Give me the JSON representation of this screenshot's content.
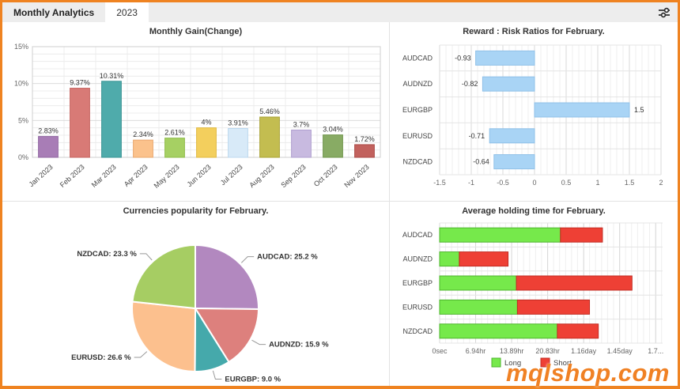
{
  "header": {
    "tabs": [
      {
        "label": "Monthly Analytics",
        "active": false
      },
      {
        "label": "2023",
        "active": true
      }
    ],
    "settings_icon": "sliders-icon"
  },
  "watermark": "mqlshop.com",
  "colors": {
    "accent_orange": "#ef8321",
    "risk_bar_fill": "#a9d4f5",
    "risk_bar_border": "#8fc0e8",
    "long_green": "#76e94b",
    "short_red": "#ee4035"
  },
  "chart_data": [
    {
      "type": "bar",
      "title": "Monthly Gain(Change)",
      "categories": [
        "Jan 2023",
        "Feb 2023",
        "Mar 2023",
        "Apr 2023",
        "May 2023",
        "Jun 2023",
        "Jul 2023",
        "Aug 2023",
        "Sep 2023",
        "Oct 2023",
        "Nov 2023"
      ],
      "values": [
        2.83,
        9.37,
        10.31,
        2.34,
        2.61,
        4,
        3.91,
        5.46,
        3.7,
        3.04,
        1.72
      ],
      "value_labels": [
        "2.83%",
        "9.37%",
        "10.31%",
        "2.34%",
        "2.61%",
        "4%",
        "3.91%",
        "5.46%",
        "3.7%",
        "3.04%",
        "1.72%"
      ],
      "bar_colors": [
        "#a87db6",
        "#d87a76",
        "#4fabab",
        "#fbc28c",
        "#a6d063",
        "#f3cf5d",
        "#d8eaf8",
        "#c3bd50",
        "#c8bae0",
        "#88ab64",
        "#c2615d"
      ],
      "bar_borders": [
        "#9268a3",
        "#c66561",
        "#3a9494",
        "#eaa86e",
        "#8fbc4a",
        "#e0b93f",
        "#bcd8ef",
        "#aaa336",
        "#b0a0d0",
        "#71964c",
        "#ab4a46"
      ],
      "ylim": [
        0,
        15
      ],
      "yticks": [
        {
          "v": 0,
          "label": "0%"
        },
        {
          "v": 5,
          "label": "5%"
        },
        {
          "v": 10,
          "label": "10%"
        },
        {
          "v": 15,
          "label": "15%"
        }
      ],
      "grid": true
    },
    {
      "type": "bar-horizontal",
      "title": "Reward : Risk Ratios for February.",
      "categories": [
        "AUDCAD",
        "AUDNZD",
        "EURGBP",
        "EURUSD",
        "NZDCAD"
      ],
      "values": [
        -0.93,
        -0.82,
        1.5,
        -0.71,
        -0.64
      ],
      "value_labels": [
        "-0.93",
        "-0.82",
        "1.5",
        "-0.71",
        "-0.64"
      ],
      "xlim": [
        -1.5,
        2
      ],
      "xticks": [
        {
          "v": -1.5,
          "label": "-1.5"
        },
        {
          "v": -1,
          "label": "-1"
        },
        {
          "v": -0.5,
          "label": "-0.5"
        },
        {
          "v": 0,
          "label": "0"
        },
        {
          "v": 0.5,
          "label": "0.5"
        },
        {
          "v": 1,
          "label": "1"
        },
        {
          "v": 1.5,
          "label": "1.5"
        },
        {
          "v": 2,
          "label": "2"
        }
      ],
      "grid": true
    },
    {
      "type": "pie",
      "title": "Currencies popularity for February.",
      "slices": [
        {
          "label": "AUDCAD",
          "value": 25.2,
          "display": "AUDCAD: 25.2 %",
          "color": "#b288bf"
        },
        {
          "label": "AUDNZD",
          "value": 15.9,
          "display": "AUDNZD: 15.9 %",
          "color": "#dd807d"
        },
        {
          "label": "EURGBP",
          "value": 9.0,
          "display": "EURGBP: 9.0 %",
          "color": "#45a9ab"
        },
        {
          "label": "EURUSD",
          "value": 26.6,
          "display": "EURUSD: 26.6 %",
          "color": "#fcc08e"
        },
        {
          "label": "NZDCAD",
          "value": 23.3,
          "display": "NZDCAD: 23.3 %",
          "color": "#a6cd63"
        }
      ],
      "start_angle_deg": -90,
      "clockwise": true
    },
    {
      "type": "stacked-bar-horizontal",
      "title": "Average holding time for February.",
      "categories": [
        "AUDCAD",
        "AUDNZD",
        "EURGBP",
        "EURUSD",
        "NZDCAD"
      ],
      "series": [
        {
          "name": "Long",
          "color": "#76e94b",
          "border": "#4db52c",
          "values_hours": [
            23.3,
            3.8,
            14.8,
            15.0,
            22.7
          ]
        },
        {
          "name": "Short",
          "color": "#ee4035",
          "border": "#c22b22",
          "values_hours": [
            8.1,
            9.4,
            22.3,
            13.9,
            7.9
          ]
        }
      ],
      "xlim_hours": [
        0,
        43
      ],
      "xticks": [
        {
          "v": 0,
          "label": "0sec"
        },
        {
          "v": 6.94,
          "label": "6.94hr"
        },
        {
          "v": 13.89,
          "label": "13.89hr"
        },
        {
          "v": 20.83,
          "label": "20.83hr"
        },
        {
          "v": 27.78,
          "label": "1.16day"
        },
        {
          "v": 34.72,
          "label": "1.45day"
        },
        {
          "v": 41.67,
          "label": "1.7..."
        }
      ],
      "legend": [
        {
          "label": "Long"
        },
        {
          "label": "Short"
        }
      ],
      "legend_position": "bottom"
    }
  ]
}
